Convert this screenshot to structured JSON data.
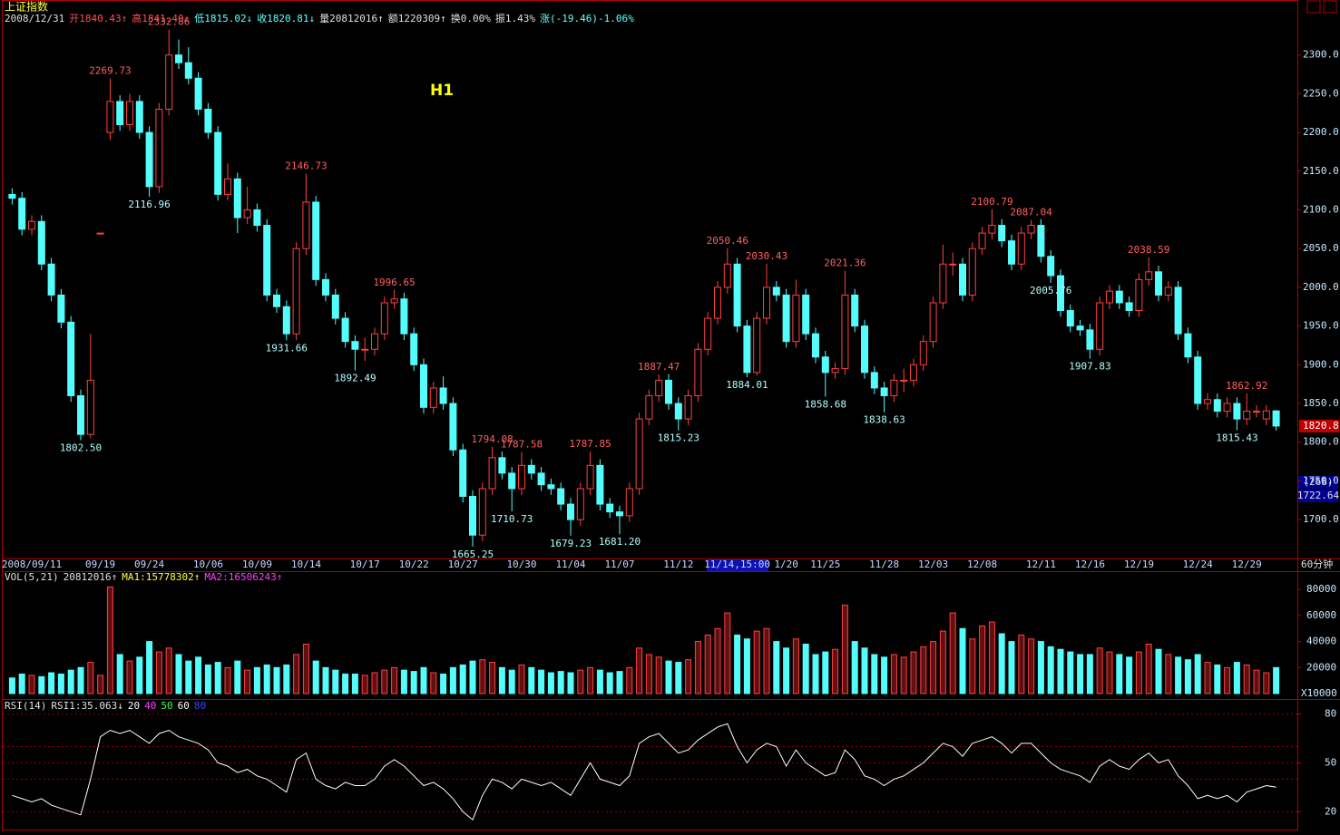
{
  "header": {
    "name": "上证指数",
    "items": [
      {
        "text": "2008/12/31",
        "color": "#e0e0e0"
      },
      {
        "text": "开1840.43↑",
        "color": "#ff5050"
      },
      {
        "text": "高1841.40↓",
        "color": "#ff5050"
      },
      {
        "text": "低1815.02↓",
        "color": "#60ffff"
      },
      {
        "text": "收1820.81↓",
        "color": "#60ffff"
      },
      {
        "text": "量20812016↑",
        "color": "#e0e0e0"
      },
      {
        "text": "额1220309↑",
        "color": "#e0e0e0"
      },
      {
        "text": "换0.00%",
        "color": "#e0e0e0"
      },
      {
        "text": "振1.43%",
        "color": "#e0e0e0"
      },
      {
        "text": "涨(-19.46)-1.06%",
        "color": "#60ffff"
      }
    ]
  },
  "chart_data": [
    {
      "type": "candlestick",
      "tag": "H1",
      "period": "60分钟",
      "last_price_label": "1820.8",
      "side_info": [
        "(268)",
        "1722.64"
      ],
      "up_color": "#ff4040",
      "down_color": "#54fcfc",
      "ylim": [
        1651,
        2371
      ],
      "yticks": [
        {
          "value": 1700,
          "label": "1700.0"
        },
        {
          "value": 1750,
          "label": "1750.0"
        },
        {
          "value": 1800,
          "label": "1800.0"
        },
        {
          "value": 1850,
          "label": "1850.0"
        },
        {
          "value": 1900,
          "label": "1900.0"
        },
        {
          "value": 1950,
          "label": "1950.0"
        },
        {
          "value": 2000,
          "label": "2000.0"
        },
        {
          "value": 2050,
          "label": "2050.0"
        },
        {
          "value": 2100,
          "label": "2100.0"
        },
        {
          "value": 2150,
          "label": "2150.0"
        },
        {
          "value": 2200,
          "label": "2200.0"
        },
        {
          "value": 2250,
          "label": "2250.0"
        },
        {
          "value": 2300,
          "label": "2300.0"
        }
      ],
      "categories": [
        null,
        null,
        "2008/09/11",
        null,
        null,
        null,
        null,
        null,
        null,
        "09/19",
        null,
        null,
        null,
        null,
        "09/24",
        null,
        null,
        null,
        null,
        null,
        "10/06",
        null,
        null,
        null,
        null,
        "10/09",
        null,
        null,
        null,
        null,
        "10/14",
        null,
        null,
        null,
        null,
        null,
        "10/17",
        null,
        null,
        null,
        null,
        "10/22",
        null,
        null,
        null,
        null,
        "10/27",
        null,
        null,
        null,
        null,
        null,
        "10/30",
        null,
        null,
        null,
        null,
        "11/04",
        null,
        null,
        null,
        null,
        "11/07",
        null,
        null,
        null,
        null,
        null,
        "11/12",
        null,
        null,
        null,
        null,
        null,
        "11/14,15:00",
        null,
        null,
        null,
        null,
        "1/20",
        null,
        null,
        null,
        "11/25",
        null,
        null,
        null,
        null,
        null,
        "11/28",
        null,
        null,
        null,
        null,
        "12/03",
        null,
        null,
        null,
        null,
        "12/08",
        null,
        null,
        null,
        null,
        null,
        "12/11",
        null,
        null,
        null,
        null,
        "12/16",
        null,
        null,
        null,
        null,
        "12/19",
        null,
        null,
        null,
        null,
        null,
        "12/24",
        null,
        null,
        null,
        null,
        "12/29",
        null,
        null,
        null
      ],
      "open": [
        2120,
        2115,
        2075,
        2085,
        2030,
        1990,
        1955,
        1860,
        1810,
        2070,
        2200,
        2240,
        2210,
        2240,
        2200,
        2130,
        2230,
        2300,
        2290,
        2270,
        2230,
        2200,
        2120,
        2140,
        2090,
        2100,
        2080,
        1990,
        1975,
        1940,
        2050,
        2110,
        2010,
        1990,
        1960,
        1930,
        1920,
        1920,
        1940,
        1980,
        1985,
        1940,
        1900,
        1845,
        1870,
        1850,
        1790,
        1730,
        1680,
        1740,
        1780,
        1760,
        1740,
        1770,
        1760,
        1745,
        1740,
        1720,
        1700,
        1740,
        1770,
        1720,
        1710,
        1705,
        1740,
        1830,
        1860,
        1880,
        1850,
        1830,
        1860,
        1920,
        1960,
        2000,
        2030,
        1950,
        1890,
        1960,
        2000,
        1990,
        1930,
        1990,
        1940,
        1910,
        1890,
        1895,
        1990,
        1950,
        1890,
        1870,
        1860,
        1880,
        1880,
        1900,
        1930,
        1980,
        2030,
        2030,
        1990,
        2050,
        2070,
        2080,
        2060,
        2030,
        2070,
        2080,
        2040,
        2015,
        1970,
        1950,
        1945,
        1920,
        1980,
        1995,
        1980,
        1970,
        2010,
        2020,
        1990,
        2000,
        1940,
        1910,
        1850,
        1855,
        1840,
        1850,
        1830,
        1840,
        1830,
        1840.43
      ],
      "high": [
        2128,
        2123,
        2093,
        2093,
        2038,
        1998,
        1963,
        1868,
        1940,
        2070,
        2269.73,
        2248,
        2250,
        2248,
        2208,
        2238,
        2332.86,
        2320,
        2310,
        2278,
        2238,
        2208,
        2160,
        2148,
        2130,
        2108,
        2088,
        1998,
        1983,
        2058,
        2146.73,
        2118,
        2018,
        1998,
        1968,
        1938,
        1935,
        1948,
        1988,
        1996.65,
        1993,
        1948,
        1908,
        1878,
        1885,
        1858,
        1798,
        1738,
        1748,
        1794.08,
        1788,
        1768,
        1787.58,
        1778,
        1768,
        1753,
        1748,
        1728,
        1748,
        1787.85,
        1778,
        1728,
        1718,
        1748,
        1838,
        1868,
        1887.47,
        1888,
        1858,
        1868,
        1928,
        1968,
        2008,
        2050.46,
        2038,
        1958,
        1968,
        2030.43,
        2008,
        1998,
        2010,
        1998,
        1948,
        1918,
        1903,
        2021.36,
        1998,
        1958,
        1898,
        1878,
        1888,
        1895,
        1908,
        1938,
        1988,
        2055,
        2045,
        2038,
        2058,
        2078,
        2100.79,
        2088,
        2068,
        2078,
        2087.04,
        2088,
        2048,
        2023,
        1978,
        1958,
        1953,
        1988,
        2003,
        2003,
        1988,
        2018,
        2038.59,
        2028,
        2008,
        2008,
        1948,
        1918,
        1863,
        1863,
        1858,
        1858,
        1862.92,
        1848,
        1848,
        1841.4
      ],
      "low": [
        2107,
        2067,
        2067,
        2022,
        1982,
        1947,
        1852,
        1802.5,
        1805,
        2070,
        2190,
        2202,
        2202,
        2192,
        2116.96,
        2122,
        2222,
        2282,
        2262,
        2222,
        2192,
        2112,
        2112,
        2070,
        2082,
        2072,
        1982,
        1967,
        1931.66,
        1932,
        2042,
        2002,
        1982,
        1952,
        1922,
        1892.49,
        1905,
        1912,
        1932,
        1972,
        1932,
        1892,
        1837,
        1837,
        1842,
        1782,
        1722,
        1665.25,
        1672,
        1732,
        1752,
        1710.73,
        1732,
        1752,
        1737,
        1732,
        1712,
        1679.23,
        1692,
        1732,
        1712,
        1702,
        1681.2,
        1697,
        1732,
        1822,
        1852,
        1842,
        1815.23,
        1822,
        1852,
        1912,
        1952,
        1992,
        1942,
        1884.01,
        1886,
        1952,
        1982,
        1922,
        1922,
        1932,
        1902,
        1858.68,
        1882,
        1887,
        1942,
        1882,
        1862,
        1838.63,
        1852,
        1865,
        1872,
        1892,
        1922,
        1972,
        2015,
        1982,
        1982,
        2042,
        2062,
        2052,
        2022,
        2022,
        2062,
        2032,
        2005.76,
        1962,
        1942,
        1937,
        1907.83,
        1912,
        1972,
        1972,
        1962,
        1962,
        2002,
        1982,
        1982,
        1932,
        1902,
        1842,
        1842,
        1832,
        1832,
        1815.43,
        1822,
        1832,
        1822,
        1815.02
      ],
      "close": [
        2115,
        2075,
        2085,
        2030,
        1990,
        1955,
        1860,
        1810,
        1880,
        2070,
        2240,
        2210,
        2240,
        2200,
        2130,
        2230,
        2300,
        2290,
        2270,
        2230,
        2200,
        2120,
        2140,
        2090,
        2100,
        2080,
        1990,
        1975,
        1940,
        2050,
        2110,
        2010,
        1990,
        1960,
        1930,
        1920,
        1920,
        1940,
        1980,
        1985,
        1940,
        1900,
        1845,
        1870,
        1850,
        1790,
        1730,
        1680,
        1740,
        1780,
        1760,
        1740,
        1770,
        1760,
        1745,
        1740,
        1720,
        1700,
        1740,
        1770,
        1720,
        1710,
        1705,
        1740,
        1830,
        1860,
        1880,
        1850,
        1830,
        1860,
        1920,
        1960,
        2000,
        2030,
        1950,
        1890,
        1960,
        2000,
        1990,
        1930,
        1990,
        1940,
        1910,
        1890,
        1895,
        1990,
        1950,
        1890,
        1870,
        1860,
        1880,
        1880,
        1900,
        1930,
        1980,
        2030,
        2030,
        1990,
        2050,
        2070,
        2080,
        2060,
        2030,
        2070,
        2080,
        2040,
        2015,
        1970,
        1950,
        1945,
        1920,
        1980,
        1995,
        1980,
        1970,
        2010,
        2020,
        1990,
        2000,
        1940,
        1910,
        1850,
        1855,
        1840,
        1850,
        1830,
        1840,
        1840,
        1840.43,
        1820.81
      ],
      "annotations": [
        "2332.86",
        "2269.73",
        "2116.96",
        "1802.50",
        "2146.73",
        "1931.66",
        "1996.65",
        "1892.49",
        "1665.25",
        "1794.08",
        "1787.58",
        "1710.73",
        "1787.85",
        "1679.23",
        "1681.20",
        "1887.47",
        "1815.23",
        "2050.46",
        "1884.01",
        "2030.43",
        "2021.36",
        "1858.68",
        "1838.63",
        "2100.79",
        "2087.04",
        "2005.76",
        "1907.83",
        "2038.59",
        "1862.92",
        "1815.43"
      ]
    },
    {
      "type": "bar",
      "title": "VOL(5,21)",
      "legend": [
        {
          "text": "20812016↑",
          "color": "#e0e0e0"
        },
        {
          "text": "MA1:15778302↑",
          "color": "#ffff40"
        },
        {
          "text": "MA2:16506243↑",
          "color": "#ff40ff"
        }
      ],
      "y_label": "X10000",
      "ylim": [
        0,
        92000
      ],
      "yticks": [
        20000,
        40000,
        60000,
        80000
      ],
      "values": [
        12000,
        15000,
        14000,
        13000,
        16000,
        15000,
        18000,
        20000,
        24000,
        14000,
        82000,
        30000,
        25000,
        28000,
        40000,
        32000,
        35000,
        30000,
        25000,
        28000,
        22000,
        24000,
        20000,
        25000,
        18000,
        20000,
        22000,
        20000,
        22000,
        30000,
        38000,
        25000,
        20000,
        18000,
        15000,
        15000,
        14000,
        16000,
        18000,
        20000,
        18000,
        17000,
        20000,
        16000,
        15000,
        20000,
        22000,
        25000,
        26000,
        24000,
        20000,
        18000,
        22000,
        20000,
        18000,
        16000,
        17000,
        16000,
        18000,
        20000,
        18000,
        16000,
        17000,
        20000,
        35000,
        30000,
        28000,
        25000,
        24000,
        26000,
        40000,
        45000,
        50000,
        62000,
        45000,
        42000,
        48000,
        50000,
        40000,
        35000,
        42000,
        38000,
        30000,
        32000,
        34000,
        68000,
        40000,
        35000,
        30000,
        28000,
        30000,
        28000,
        32000,
        36000,
        40000,
        48000,
        62000,
        50000,
        42000,
        52000,
        55000,
        46000,
        40000,
        45000,
        42000,
        40000,
        36000,
        34000,
        32000,
        30000,
        30000,
        35000,
        32000,
        30000,
        28000,
        32000,
        38000,
        34000,
        30000,
        28000,
        26000,
        30000,
        24000,
        22000,
        20000,
        24000,
        22000,
        18000,
        16000,
        20000
      ]
    },
    {
      "type": "line",
      "title": "RSI(14)",
      "legend": "RSI1:35.063↓",
      "color": "#ffffff",
      "levels": [
        20,
        40,
        50,
        60,
        80
      ],
      "level_colors": [
        "#ffffff",
        "#ff40ff",
        "#40ff40",
        "#ffffff",
        "#4040ff"
      ],
      "ylim": [
        9,
        87
      ],
      "yticks": [
        20,
        50,
        80
      ],
      "values": [
        30,
        28,
        26,
        28,
        24,
        22,
        20,
        18,
        40,
        66,
        70,
        68,
        70,
        66,
        62,
        68,
        70,
        66,
        64,
        62,
        58,
        50,
        48,
        44,
        46,
        42,
        40,
        36,
        32,
        52,
        56,
        40,
        36,
        34,
        38,
        36,
        36,
        40,
        48,
        52,
        48,
        42,
        36,
        38,
        34,
        28,
        20,
        15,
        30,
        40,
        38,
        34,
        40,
        38,
        36,
        38,
        34,
        30,
        40,
        50,
        40,
        38,
        36,
        42,
        62,
        66,
        68,
        62,
        56,
        58,
        64,
        68,
        72,
        74,
        60,
        50,
        58,
        62,
        60,
        48,
        58,
        50,
        46,
        42,
        44,
        58,
        52,
        42,
        40,
        36,
        40,
        42,
        46,
        50,
        56,
        62,
        60,
        54,
        62,
        64,
        66,
        62,
        56,
        62,
        62,
        56,
        50,
        46,
        44,
        42,
        38,
        48,
        52,
        48,
        46,
        52,
        56,
        50,
        52,
        42,
        36,
        28,
        30,
        28,
        30,
        26,
        32,
        34,
        36,
        35.063
      ]
    }
  ]
}
